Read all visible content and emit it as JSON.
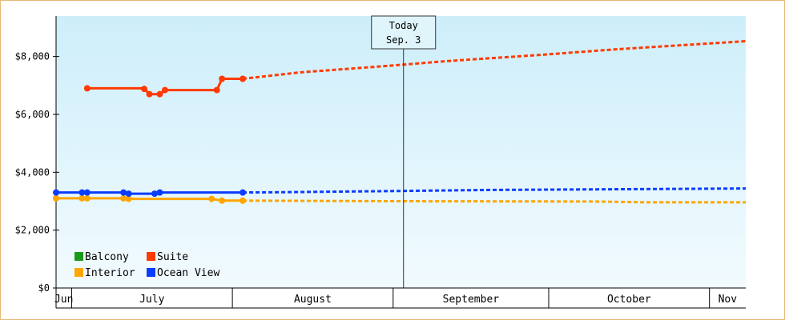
{
  "chart_data": {
    "type": "line",
    "x_unit": "date",
    "y_unit": "USD",
    "yticks": [
      {
        "value": 0,
        "label": "$0"
      },
      {
        "value": 2000,
        "label": "$2,000"
      },
      {
        "value": 4000,
        "label": "$4,000"
      },
      {
        "value": 6000,
        "label": "$6,000"
      },
      {
        "value": 8000,
        "label": "$8,000"
      }
    ],
    "ylim": [
      0,
      9400
    ],
    "xlim": [
      "2024-06-28",
      "2024-11-08"
    ],
    "grid": false,
    "background_gradient": [
      "#cdeefa",
      "#f2fbfe"
    ],
    "today": {
      "line1": "Today",
      "line2": "Sep. 3",
      "date": "2024-09-03"
    },
    "months": [
      {
        "label": "Jun",
        "start": "2024-06-28",
        "end": "2024-07-01"
      },
      {
        "label": "July",
        "start": "2024-07-01",
        "end": "2024-08-01"
      },
      {
        "label": "August",
        "start": "2024-08-01",
        "end": "2024-09-01"
      },
      {
        "label": "September",
        "start": "2024-09-01",
        "end": "2024-10-01"
      },
      {
        "label": "October",
        "start": "2024-10-01",
        "end": "2024-11-01"
      },
      {
        "label": "Nov",
        "start": "2024-11-01",
        "end": "2024-11-08"
      }
    ],
    "legend": {
      "position": "bottom-left",
      "entries": [
        {
          "name": "Balcony",
          "color": "#1a9a1a"
        },
        {
          "name": "Suite",
          "color": "#ff3a00"
        },
        {
          "name": "Interior",
          "color": "#ffa500"
        },
        {
          "name": "Ocean View",
          "color": "#0a3cff"
        }
      ]
    },
    "series": [
      {
        "name": "Suite",
        "color": "#ff3a00",
        "actual": [
          {
            "x": "2024-07-04",
            "y": 6900
          },
          {
            "x": "2024-07-15",
            "y": 6900
          },
          {
            "x": "2024-07-15",
            "y": 6880
          },
          {
            "x": "2024-07-16",
            "y": 6700
          },
          {
            "x": "2024-07-18",
            "y": 6700
          },
          {
            "x": "2024-07-19",
            "y": 6840
          },
          {
            "x": "2024-07-29",
            "y": 6840
          },
          {
            "x": "2024-07-30",
            "y": 7230
          },
          {
            "x": "2024-08-03",
            "y": 7230
          }
        ],
        "markers": [
          {
            "x": "2024-07-04",
            "y": 6900
          },
          {
            "x": "2024-07-15",
            "y": 6880
          },
          {
            "x": "2024-07-16",
            "y": 6700
          },
          {
            "x": "2024-07-18",
            "y": 6700
          },
          {
            "x": "2024-07-19",
            "y": 6840
          },
          {
            "x": "2024-07-29",
            "y": 6840
          },
          {
            "x": "2024-07-30",
            "y": 7230
          },
          {
            "x": "2024-08-03",
            "y": 7230
          }
        ],
        "forecast": [
          {
            "x": "2024-08-03",
            "y": 7230
          },
          {
            "x": "2024-08-14",
            "y": 7450
          },
          {
            "x": "2024-08-29",
            "y": 7650
          },
          {
            "x": "2024-09-12",
            "y": 7850
          },
          {
            "x": "2024-09-29",
            "y": 8050
          },
          {
            "x": "2024-10-14",
            "y": 8250
          },
          {
            "x": "2024-11-08",
            "y": 8530
          }
        ]
      },
      {
        "name": "Ocean View",
        "color": "#0a3cff",
        "actual": [
          {
            "x": "2024-06-28",
            "y": 3300
          },
          {
            "x": "2024-07-03",
            "y": 3300
          },
          {
            "x": "2024-07-04",
            "y": 3300
          },
          {
            "x": "2024-07-11",
            "y": 3300
          },
          {
            "x": "2024-07-12",
            "y": 3260
          },
          {
            "x": "2024-07-17",
            "y": 3260
          },
          {
            "x": "2024-07-18",
            "y": 3300
          },
          {
            "x": "2024-08-03",
            "y": 3300
          }
        ],
        "markers": [
          {
            "x": "2024-06-28",
            "y": 3300
          },
          {
            "x": "2024-07-03",
            "y": 3300
          },
          {
            "x": "2024-07-04",
            "y": 3300
          },
          {
            "x": "2024-07-11",
            "y": 3300
          },
          {
            "x": "2024-07-12",
            "y": 3260
          },
          {
            "x": "2024-07-17",
            "y": 3260
          },
          {
            "x": "2024-07-18",
            "y": 3300
          },
          {
            "x": "2024-08-03",
            "y": 3300
          }
        ],
        "forecast": [
          {
            "x": "2024-08-03",
            "y": 3300
          },
          {
            "x": "2024-08-10",
            "y": 3310
          },
          {
            "x": "2024-09-01",
            "y": 3350
          },
          {
            "x": "2024-09-20",
            "y": 3390
          },
          {
            "x": "2024-10-10",
            "y": 3410
          },
          {
            "x": "2024-11-08",
            "y": 3440
          }
        ]
      },
      {
        "name": "Interior",
        "color": "#ffa500",
        "actual": [
          {
            "x": "2024-06-28",
            "y": 3100
          },
          {
            "x": "2024-07-03",
            "y": 3100
          },
          {
            "x": "2024-07-04",
            "y": 3100
          },
          {
            "x": "2024-07-11",
            "y": 3100
          },
          {
            "x": "2024-07-12",
            "y": 3080
          },
          {
            "x": "2024-07-28",
            "y": 3080
          },
          {
            "x": "2024-07-30",
            "y": 3020
          },
          {
            "x": "2024-08-03",
            "y": 3020
          }
        ],
        "markers": [
          {
            "x": "2024-06-28",
            "y": 3100
          },
          {
            "x": "2024-07-03",
            "y": 3100
          },
          {
            "x": "2024-07-04",
            "y": 3100
          },
          {
            "x": "2024-07-11",
            "y": 3100
          },
          {
            "x": "2024-07-12",
            "y": 3080
          },
          {
            "x": "2024-07-28",
            "y": 3080
          },
          {
            "x": "2024-07-30",
            "y": 3020
          },
          {
            "x": "2024-08-03",
            "y": 3020
          }
        ],
        "forecast": [
          {
            "x": "2024-08-03",
            "y": 3020
          },
          {
            "x": "2024-09-01",
            "y": 3000
          },
          {
            "x": "2024-10-10",
            "y": 2990
          },
          {
            "x": "2024-10-20",
            "y": 2960
          },
          {
            "x": "2024-11-08",
            "y": 2960
          }
        ]
      }
    ]
  }
}
